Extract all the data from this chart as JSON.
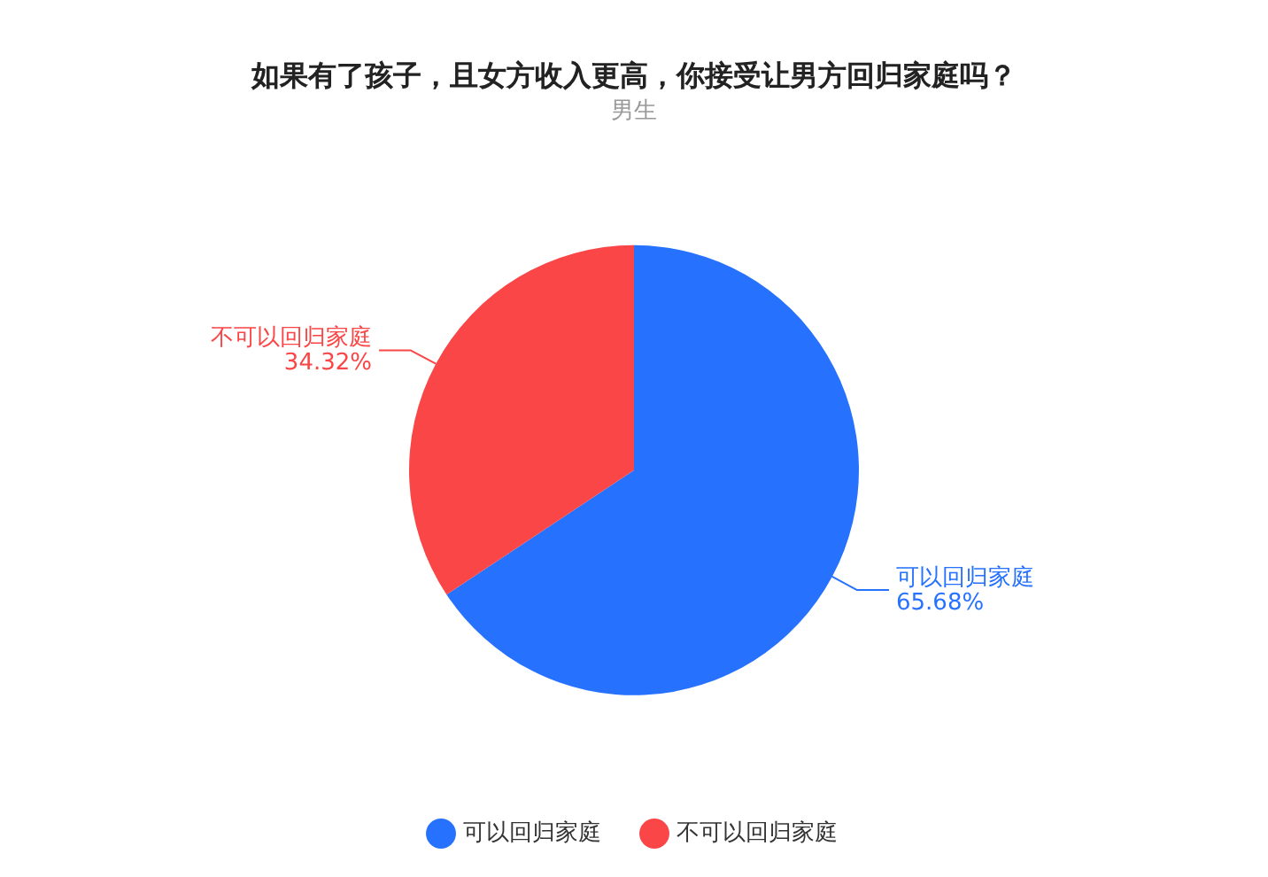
{
  "chart_data": {
    "type": "pie",
    "title": "如果有了孩子，且女方收入更高，你接受让男方回归家庭吗？",
    "subtitle": "男生",
    "categories": [
      "可以回归家庭",
      "不可以回归家庭"
    ],
    "values": [
      65.68,
      34.32
    ],
    "colors": [
      "#2672ff",
      "#fa4646"
    ],
    "value_labels": [
      "65.68%",
      "34.32%"
    ],
    "legend": "bottom"
  }
}
